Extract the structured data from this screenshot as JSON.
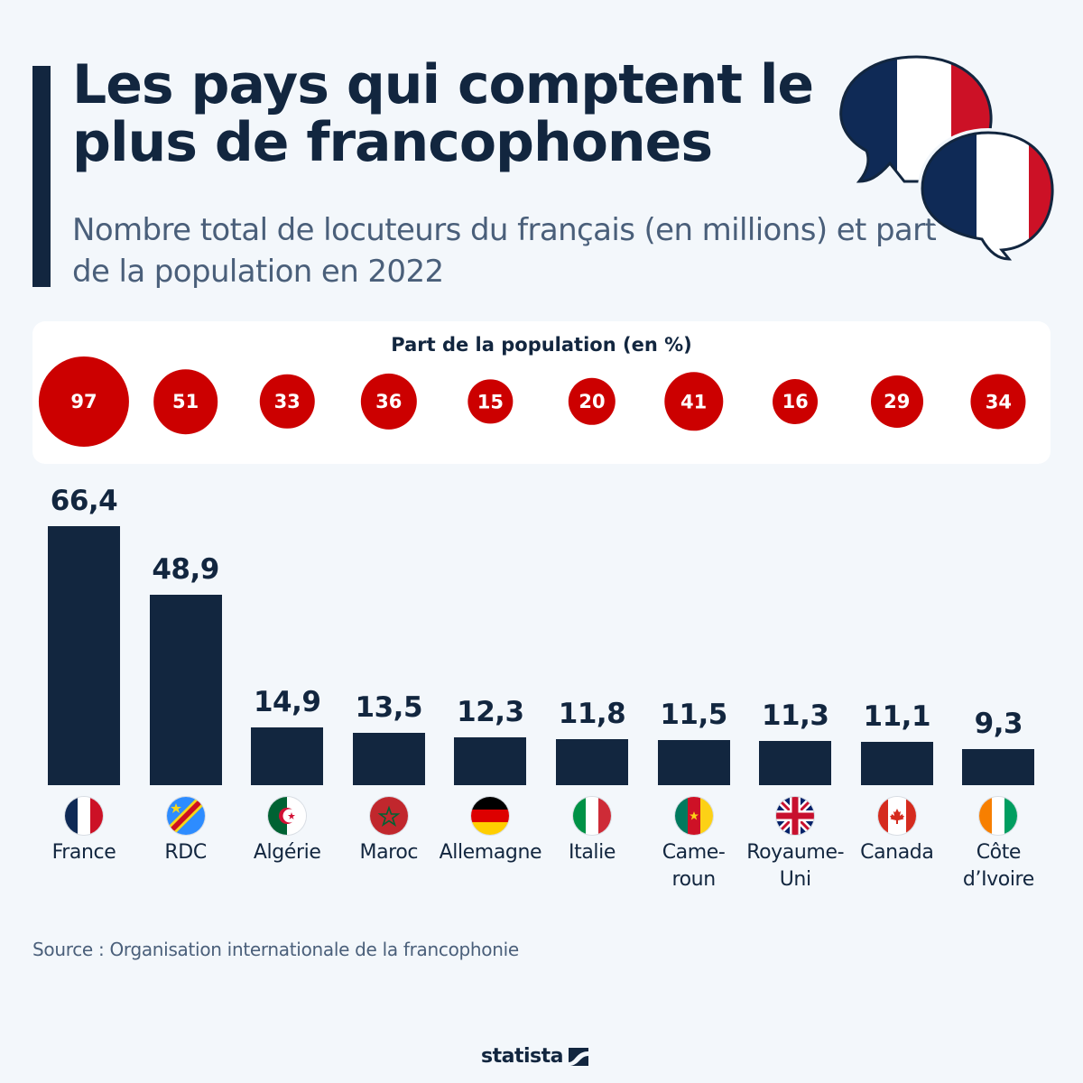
{
  "header": {
    "title": "Les pays qui comptent le plus de francophones",
    "subtitle": "Nombre total de locuteurs du français (en millions) et part de la population en 2022"
  },
  "panel": {
    "title": "Part de la population (en %)"
  },
  "colors": {
    "bar": "#12263f",
    "circle": "#cc0000",
    "background": "#f3f7fb",
    "text": "#12263f",
    "subtext": "#4a5f7a"
  },
  "chart_data": {
    "type": "bar",
    "title": "Les pays qui comptent le plus de francophones",
    "subtitle": "Nombre total de locuteurs du français (en millions) et part de la population en 2022",
    "xlabel": "",
    "ylabel": "Locuteurs du français (en millions)",
    "ylim": [
      0,
      66.4
    ],
    "grid": false,
    "categories": [
      "France",
      "RDC",
      "Algérie",
      "Maroc",
      "Allemagne",
      "Italie",
      "Cameroun",
      "Royaume-Uni",
      "Canada",
      "Côte d'Ivoire"
    ],
    "category_labels": [
      "France",
      "RDC",
      "Algérie",
      "Maroc",
      "Allemagne",
      "Italie",
      "Came-\nroun",
      "Royaume-\nUni",
      "Canada",
      "Côte\nd’Ivoire"
    ],
    "flags": [
      "france-flag-icon",
      "drc-flag-icon",
      "algeria-flag-icon",
      "morocco-flag-icon",
      "germany-flag-icon",
      "italy-flag-icon",
      "cameroon-flag-icon",
      "uk-flag-icon",
      "canada-flag-icon",
      "ivory-coast-flag-icon"
    ],
    "series": [
      {
        "name": "Locuteurs (millions)",
        "values": [
          66.4,
          48.9,
          14.9,
          13.5,
          12.3,
          11.8,
          11.5,
          11.3,
          11.1,
          9.3
        ],
        "labels": [
          "66,4",
          "48,9",
          "14,9",
          "13,5",
          "12,3",
          "11,8",
          "11,5",
          "11,3",
          "11,1",
          "9,3"
        ]
      },
      {
        "name": "Part de la population (en %)",
        "values": [
          97,
          51,
          33,
          36,
          15,
          20,
          41,
          16,
          29,
          34
        ]
      }
    ]
  },
  "footer": {
    "source": "Source : Organisation internationale de la francophonie",
    "brand": "statista"
  }
}
